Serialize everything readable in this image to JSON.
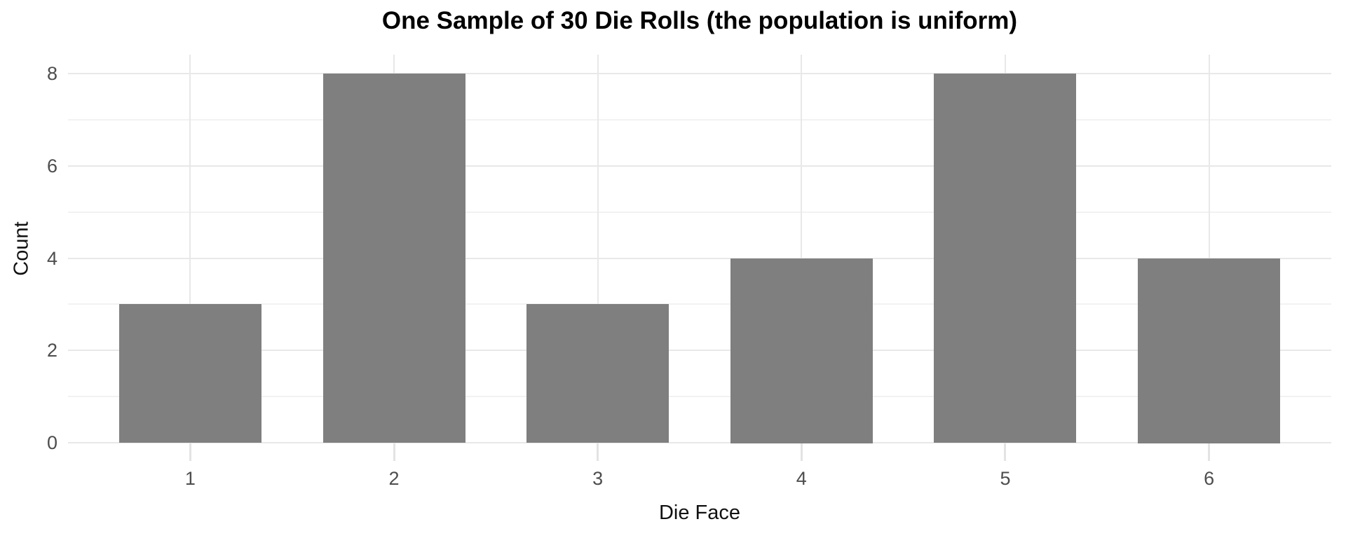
{
  "chart_data": {
    "type": "bar",
    "title": "One Sample of 30 Die Rolls (the population is uniform)",
    "xlabel": "Die Face",
    "ylabel": "Count",
    "categories": [
      "1",
      "2",
      "3",
      "4",
      "5",
      "6"
    ],
    "values": [
      3,
      8,
      3,
      4,
      8,
      4
    ],
    "total_rolls": 30,
    "ylim": [
      0,
      8.4
    ],
    "yticks_major": [
      0,
      2,
      4,
      6,
      8
    ],
    "yticks_minor": [
      1,
      3,
      5,
      7
    ],
    "grid": "on",
    "legend": "none",
    "bar_color": "#7f7f7f",
    "gridline_major_color": "#e8e8e8",
    "gridline_minor_color": "#f2f2f2",
    "axis_text_color": "#4d4d4d",
    "axis_title_color": "#111111",
    "title_color": "#000000",
    "background_color": "#ffffff"
  }
}
